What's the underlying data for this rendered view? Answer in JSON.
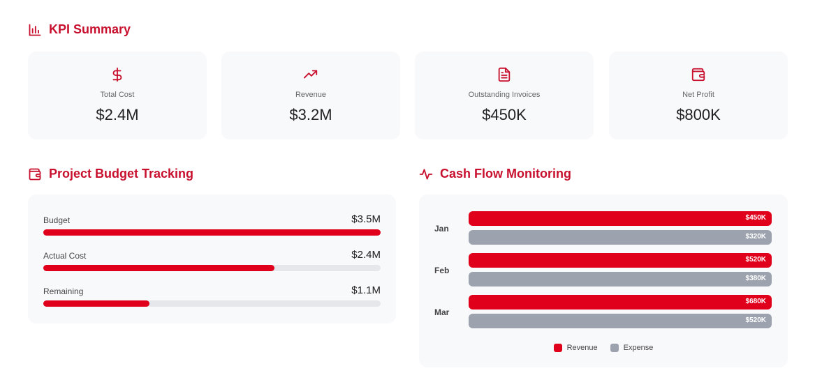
{
  "kpi": {
    "title": "KPI Summary",
    "cards": [
      {
        "label": "Total Cost",
        "value": "$2.4M",
        "icon": "dollar-icon"
      },
      {
        "label": "Revenue",
        "value": "$3.2M",
        "icon": "trending-up-icon"
      },
      {
        "label": "Outstanding Invoices",
        "value": "$450K",
        "icon": "document-icon"
      },
      {
        "label": "Net Profit",
        "value": "$800K",
        "icon": "wallet-icon"
      }
    ]
  },
  "budget": {
    "title": "Project Budget Tracking",
    "rows": [
      {
        "label": "Budget",
        "value": "$3.5M",
        "fraction": 1.0
      },
      {
        "label": "Actual Cost",
        "value": "$2.4M",
        "fraction": 0.6857
      },
      {
        "label": "Remaining",
        "value": "$1.1M",
        "fraction": 0.3143
      }
    ]
  },
  "cashflow": {
    "title": "Cash Flow Monitoring",
    "legend": {
      "revenue": "Revenue",
      "expense": "Expense"
    }
  },
  "colors": {
    "accent": "#c8102e",
    "revenue": "#e0001b",
    "expense": "#9ca3af"
  },
  "chart_data": {
    "type": "bar",
    "orientation": "horizontal",
    "categories": [
      "Jan",
      "Feb",
      "Mar"
    ],
    "series": [
      {
        "name": "Revenue",
        "values": [
          450,
          520,
          680
        ],
        "labels": [
          "$450K",
          "$520K",
          "$680K"
        ]
      },
      {
        "name": "Expense",
        "values": [
          320,
          380,
          520
        ],
        "labels": [
          "$320K",
          "$380K",
          "$520K"
        ]
      }
    ],
    "legend": "bottom-center"
  }
}
